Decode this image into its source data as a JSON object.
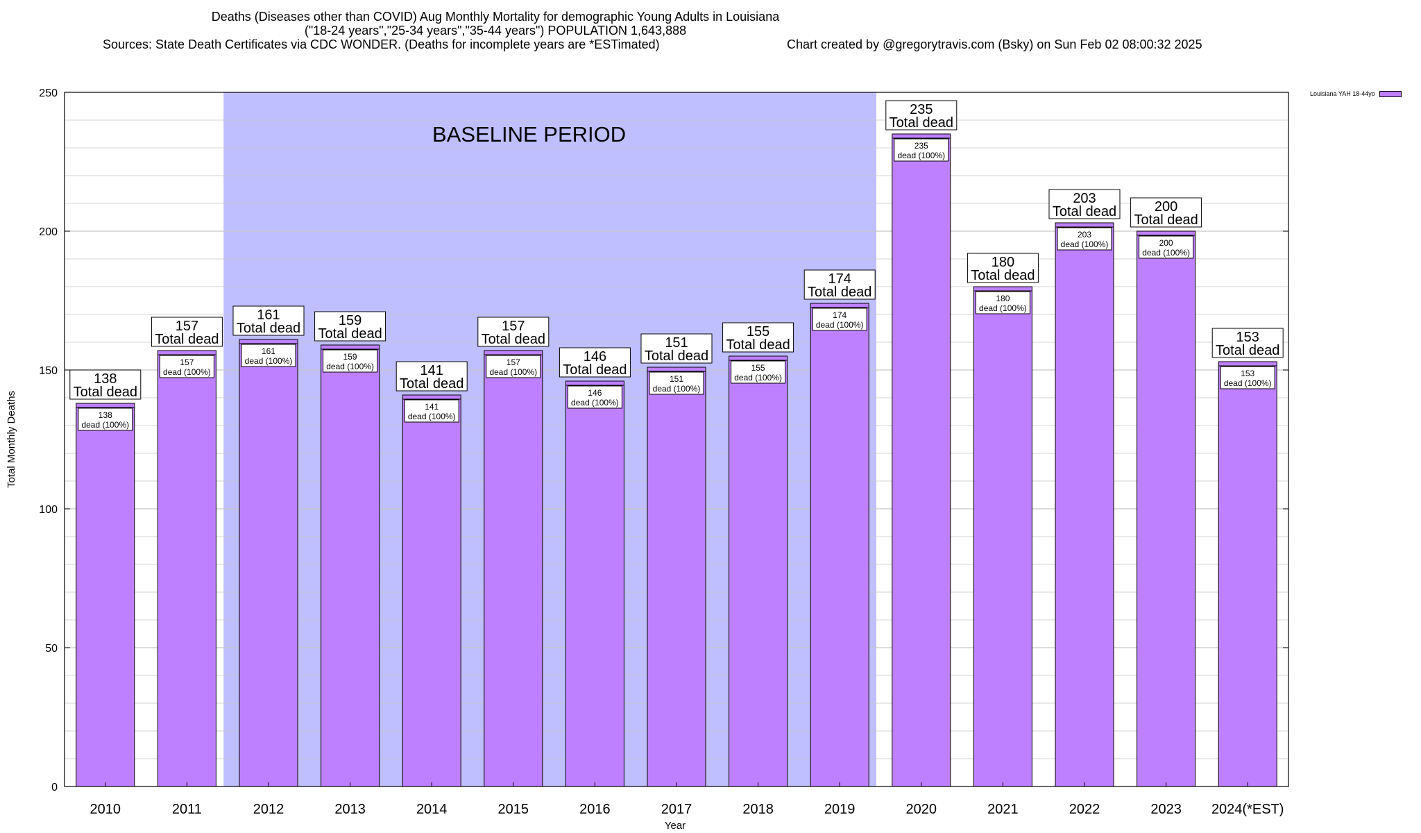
{
  "title_lines": [
    "Deaths (Diseases other than COVID) Aug Monthly Mortality for demographic Young Adults in Louisiana",
    "(\"18-24 years\",\"25-34 years\",\"35-44 years\") POPULATION 1,643,888",
    "Sources: State Death Certificates via CDC WONDER. (Deaths for incomplete years are *ESTimated)",
    "Chart created by @gregorytravis.com (Bsky) on Sun Feb 02 08:00:32 2025"
  ],
  "colors": {
    "bar_fill": "#bf80ff",
    "baseline_fill": "#bfbfff",
    "axis": "#000000",
    "grid": "#c8c8c8"
  },
  "chart_data": {
    "type": "bar",
    "title": "Deaths (Diseases other than COVID) Aug Monthly Mortality for demographic Young Adults in Louisiana",
    "xlabel": "Year",
    "ylabel": "Total Monthly Deaths",
    "ylim": [
      0,
      250
    ],
    "yticks": [
      0,
      50,
      100,
      150,
      200,
      250
    ],
    "grid": true,
    "legend_position": "top-right",
    "series": [
      {
        "name": "Louisiana YAH 18-44yo",
        "values": [
          138,
          157,
          161,
          159,
          141,
          157,
          146,
          151,
          155,
          174,
          235,
          180,
          203,
          200,
          153
        ]
      }
    ],
    "categories": [
      "2010",
      "2011",
      "2012",
      "2013",
      "2014",
      "2015",
      "2016",
      "2017",
      "2018",
      "2019",
      "2020",
      "2021",
      "2022",
      "2023",
      "2024(*EST)"
    ],
    "total_label": "Total dead",
    "inner_label": "dead (100%)",
    "baseline": {
      "label": "BASELINE PERIOD",
      "from": "2012",
      "to": "2019"
    }
  }
}
